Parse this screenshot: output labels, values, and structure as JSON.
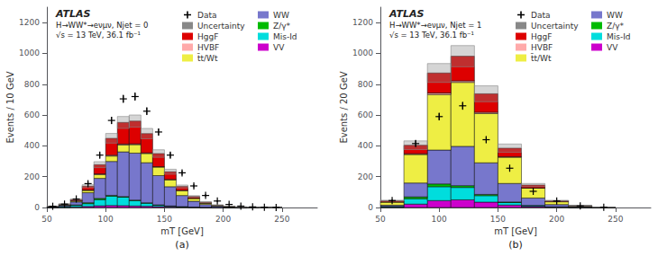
{
  "chart_data": [
    {
      "type": "bar",
      "stacked": true,
      "title": "(a)",
      "xlabel": "mT [GeV]",
      "ylabel": "Events / 10 GeV",
      "xlim": [
        50,
        280
      ],
      "ylim": [
        0,
        1300
      ],
      "xticks": [
        50,
        100,
        150,
        200,
        250
      ],
      "yticks": [
        0,
        200,
        400,
        600,
        800,
        1000,
        1200
      ],
      "grid": false,
      "legend": "upper right",
      "annotations": [
        "ATLAS",
        "H→WW*→eνμν, Njet = 0",
        "√s = 13 TeV, 36.1 fb⁻¹"
      ],
      "bins": [
        50,
        60,
        70,
        80,
        90,
        100,
        110,
        120,
        130,
        140,
        150,
        160,
        170,
        180,
        190,
        200,
        210,
        220,
        230,
        240,
        250
      ],
      "series": [
        {
          "name": "Data",
          "type": "scatter",
          "marker": "+",
          "color": "#000000",
          "x": [
            55,
            65,
            75,
            85,
            95,
            105,
            115,
            125,
            135,
            145,
            155,
            165,
            175,
            185,
            195,
            205,
            215,
            225,
            235,
            245
          ],
          "values": [
            8,
            22,
            55,
            155,
            340,
            565,
            705,
            720,
            625,
            490,
            340,
            225,
            140,
            78,
            42,
            20,
            9,
            4,
            1.5,
            0.5
          ],
          "errors": [
            2.8284,
            4.6904,
            7.4162,
            12.4499,
            18.4391,
            23.7697,
            26.5518,
            26.8328,
            25,
            22.1359,
            18.4391,
            15,
            11.8322,
            8.8318,
            6.4807,
            4.4721,
            3,
            2,
            1.2247,
            1
          ]
        },
        {
          "name": "Uncertainty",
          "type": "band",
          "color": "#888888",
          "errors": [
            0.574,
            1.54,
            3.605,
            9.66,
            19.46,
            31.43,
            38.64,
            39.27,
            33.565,
            24.5,
            16.24,
            9.541,
            5.026,
            2.4395,
            1.1039,
            0.5516,
            0.2646,
            0.1169,
            0.0441,
            0.01785
          ]
        },
        {
          "name": "HggF",
          "type": "bar",
          "color": "#dd0000",
          "values": [
            1,
            3,
            8,
            25,
            60,
            110,
            140,
            148,
            125,
            85,
            50,
            25,
            12,
            6,
            3,
            1.5,
            0.8,
            0.3,
            0.1,
            0.05
          ]
        },
        {
          "name": "HVBF",
          "type": "bar",
          "color": "#ffaaaa",
          "values": [
            0.2,
            0.5,
            1,
            2,
            4,
            5,
            6,
            5,
            4,
            3,
            2,
            1.5,
            1,
            0.5,
            0.2,
            0.1,
            0.05,
            0.02,
            0.01,
            0.005
          ]
        },
        {
          "name": "t̄t/Wt",
          "type": "bar",
          "color": "#eeee44",
          "values": [
            1,
            3,
            6,
            15,
            25,
            35,
            45,
            55,
            60,
            55,
            45,
            32,
            18,
            9,
            4,
            2,
            1,
            0.5,
            0.2,
            0.1
          ]
        },
        {
          "name": "WW",
          "type": "bar",
          "color": "#7777cc",
          "values": [
            3,
            8,
            20,
            65,
            130,
            220,
            290,
            305,
            260,
            190,
            125,
            72,
            38,
            18,
            8,
            4,
            1.8,
            0.8,
            0.3,
            0.1
          ]
        },
        {
          "name": "Z/γ*",
          "type": "bar",
          "color": "#00bb00",
          "values": [
            0.5,
            1,
            3,
            6,
            8,
            6,
            4,
            3,
            2.5,
            2,
            1.5,
            0.8,
            0.3,
            0.15,
            0.07,
            0.03,
            0.01,
            0,
            0,
            0
          ]
        },
        {
          "name": "Mis-Id",
          "type": "bar",
          "color": "#00dddd",
          "values": [
            2,
            5,
            10,
            18,
            40,
            60,
            55,
            35,
            20,
            9,
            4,
            2,
            1,
            0.5,
            0.2,
            0.1,
            0.05,
            0.02,
            0.01,
            0
          ]
        },
        {
          "name": "VV",
          "type": "bar",
          "color": "#cc00cc",
          "values": [
            0.5,
            1.5,
            3.5,
            7,
            11,
            13,
            12,
            10,
            8,
            6,
            4.5,
            3,
            1.5,
            0.7,
            0.3,
            0.15,
            0.07,
            0.03,
            0.01,
            0
          ]
        }
      ]
    },
    {
      "type": "bar",
      "stacked": true,
      "title": "(b)",
      "xlabel": "mT [GeV]",
      "ylabel": "Events / 20 GeV",
      "xlim": [
        50,
        280
      ],
      "ylim": [
        0,
        1300
      ],
      "xticks": [
        50,
        100,
        150,
        200,
        250
      ],
      "yticks": [
        0,
        200,
        400,
        600,
        800,
        1000,
        1200
      ],
      "grid": false,
      "legend": "upper right",
      "annotations": [
        "ATLAS",
        "H→WW*→eνμν, Njet = 1",
        "√s = 13 TeV, 36.1 fb⁻¹"
      ],
      "bins": [
        50,
        70,
        90,
        110,
        130,
        150,
        170,
        190,
        210,
        230,
        250
      ],
      "series": [
        {
          "name": "Data",
          "type": "scatter",
          "marker": "+",
          "color": "#000000",
          "x": [
            60,
            80,
            100,
            120,
            140,
            160,
            180,
            200,
            220,
            240
          ],
          "values": [
            45,
            415,
            590,
            660,
            440,
            255,
            105,
            42,
            10,
            2
          ],
          "errors": [
            6.7082,
            20.3715,
            24.2899,
            25.6905,
            20.9762,
            15.9687,
            10.247,
            6.4807,
            3.1623,
            1.4142
          ]
        },
        {
          "name": "Uncertainty",
          "type": "band",
          "color": "#888888",
          "errors": [
            3.08,
            28.28,
            61.11,
            68.74,
            51.66,
            26.95,
            10.185,
            3.066,
            0.8155,
            0.1624
          ]
        },
        {
          "name": "HggF",
          "type": "bar",
          "color": "#dd0000",
          "values": [
            8,
            55,
            130,
            160,
            120,
            55,
            18,
            6,
            1.5,
            0.3
          ]
        },
        {
          "name": "HVBF",
          "type": "bar",
          "color": "#ffaaaa",
          "values": [
            1,
            5,
            10,
            10,
            8,
            4,
            1,
            0.5,
            0.1,
            0.02
          ]
        },
        {
          "name": "t̄t/Wt",
          "type": "bar",
          "color": "#eeee44",
          "values": [
            20,
            185,
            360,
            415,
            320,
            170,
            65,
            18,
            5,
            1
          ]
        },
        {
          "name": "WW",
          "type": "bar",
          "color": "#7777cc",
          "values": [
            8,
            90,
            220,
            255,
            205,
            120,
            48,
            15,
            4,
            0.8
          ]
        },
        {
          "name": "Z/γ*",
          "type": "bar",
          "color": "#00bb00",
          "values": [
            1,
            12,
            18,
            12,
            8,
            4,
            1.5,
            0.3,
            0.05,
            0
          ]
        },
        {
          "name": "Mis-Id",
          "type": "bar",
          "color": "#00dddd",
          "values": [
            4,
            35,
            90,
            80,
            42,
            16,
            6,
            2,
            0.5,
            0.1
          ]
        },
        {
          "name": "VV",
          "type": "bar",
          "color": "#cc00cc",
          "values": [
            2,
            22,
            45,
            50,
            35,
            16,
            6,
            2,
            0.5,
            0.1
          ]
        }
      ]
    }
  ]
}
